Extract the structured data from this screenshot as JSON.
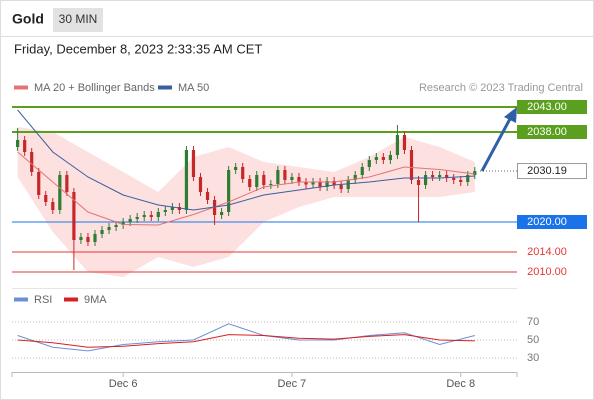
{
  "header": {
    "title": "Gold",
    "interval": "30 MIN",
    "timestamp": "Friday, December 8, 2023 2:33:35 AM CET"
  },
  "chart_data": [
    {
      "type": "candlestick",
      "note": "Research © 2023 Trading Central",
      "up_color": "#2e7d32",
      "down_color": "#c62828",
      "xlim": [
        -0.8,
        71
      ],
      "ylim": [
        2007.4,
        2050.4
      ],
      "open": [
        2035.0,
        2036.4,
        2034.0,
        2030.0,
        2025.4,
        2024.0,
        2022.4,
        2029.4,
        2026.0,
        2016.4,
        2017.0,
        2016.0,
        2017.6,
        2018.4,
        2019.0,
        2019.4,
        2020.0,
        2020.6,
        2021.0,
        2021.4,
        2021.0,
        2022.0,
        2022.4,
        2023.0,
        2022.4,
        2034.4,
        2029.0,
        2026.0,
        2024.4,
        2021.4,
        2022.0,
        2030.4,
        2031.0,
        2028.6,
        2027.0,
        2029.4,
        2027.4,
        2027.6,
        2030.4,
        2028.4,
        2029.0,
        2028.0,
        2027.5,
        2028.0,
        2027.0,
        2028.2,
        2027.4,
        2026.6,
        2028.4,
        2029.4,
        2031.0,
        2032.4,
        2033.0,
        2032.4,
        2033.4,
        2037.4,
        2034.4,
        2028.4,
        2027.4,
        2029.4,
        2029.0,
        2029.4,
        2028.8,
        2028.4,
        2028.0,
        2029.4
      ],
      "high": [
        2038.8,
        2037.2,
        2034.8,
        2030.8,
        2026.2,
        2024.8,
        2030.2,
        2030.2,
        2026.8,
        2017.8,
        2017.8,
        2018.4,
        2019.2,
        2019.8,
        2020.2,
        2020.8,
        2021.4,
        2021.8,
        2022.2,
        2022.2,
        2022.8,
        2023.2,
        2023.8,
        2023.8,
        2035.2,
        2035.2,
        2029.8,
        2026.8,
        2025.2,
        2022.8,
        2031.2,
        2031.8,
        2031.8,
        2029.4,
        2030.2,
        2030.2,
        2028.4,
        2031.2,
        2031.2,
        2029.8,
        2029.8,
        2028.8,
        2028.8,
        2028.8,
        2029.0,
        2029.0,
        2028.2,
        2029.2,
        2030.2,
        2031.8,
        2033.2,
        2033.8,
        2033.8,
        2034.2,
        2039.4,
        2038.2,
        2035.2,
        2029.2,
        2030.2,
        2030.2,
        2030.2,
        2030.2,
        2029.6,
        2029.2,
        2030.2,
        2031.0
      ],
      "low": [
        2034.2,
        2033.2,
        2029.2,
        2024.6,
        2023.2,
        2021.6,
        2021.6,
        2025.2,
        2010.4,
        2015.6,
        2015.2,
        2015.2,
        2016.8,
        2017.6,
        2018.2,
        2018.6,
        2019.2,
        2019.8,
        2020.2,
        2020.2,
        2020.2,
        2021.2,
        2021.6,
        2021.6,
        2021.6,
        2028.2,
        2025.2,
        2023.6,
        2019.4,
        2020.6,
        2021.2,
        2029.6,
        2027.8,
        2026.2,
        2026.2,
        2026.6,
        2026.6,
        2026.8,
        2027.6,
        2027.6,
        2027.2,
        2026.7,
        2026.7,
        2026.2,
        2026.2,
        2026.6,
        2025.8,
        2025.8,
        2027.6,
        2028.6,
        2030.2,
        2031.6,
        2031.6,
        2031.6,
        2032.6,
        2033.6,
        2027.6,
        2020.0,
        2026.6,
        2028.2,
        2028.2,
        2028.0,
        2027.6,
        2027.2,
        2027.2,
        2028.6
      ],
      "close": [
        2036.4,
        2034.0,
        2030.0,
        2025.4,
        2024.0,
        2022.4,
        2029.4,
        2026.0,
        2016.4,
        2017.0,
        2016.0,
        2017.6,
        2018.4,
        2019.0,
        2019.4,
        2020.0,
        2020.6,
        2021.0,
        2021.4,
        2021.0,
        2022.0,
        2022.4,
        2023.0,
        2022.4,
        2034.4,
        2029.0,
        2026.0,
        2024.4,
        2021.4,
        2022.0,
        2030.4,
        2031.0,
        2028.6,
        2027.0,
        2029.4,
        2027.4,
        2027.6,
        2030.4,
        2028.4,
        2029.0,
        2028.0,
        2027.5,
        2028.0,
        2027.0,
        2028.2,
        2027.4,
        2026.6,
        2028.4,
        2029.4,
        2031.0,
        2032.4,
        2033.0,
        2032.4,
        2033.4,
        2037.4,
        2034.4,
        2028.4,
        2027.4,
        2029.4,
        2029.0,
        2029.4,
        2028.8,
        2028.4,
        2028.0,
        2029.4,
        2030.19
      ],
      "series_x": [
        0,
        5,
        10,
        15,
        20,
        25,
        30,
        35,
        40,
        45,
        50,
        55,
        60,
        65
      ],
      "series": [
        {
          "name": "MA 20 + Bollinger Bands",
          "color": "#e57373",
          "band_color": "#fde0e0",
          "values": [
            2034,
            2028,
            2022,
            2019.5,
            2019.4,
            2021.5,
            2024,
            2027,
            2028,
            2028,
            2029,
            2031,
            2030.5,
            2029.6
          ],
          "band_upper": [
            2039,
            2038,
            2034,
            2030,
            2026,
            2033,
            2035,
            2032,
            2031,
            2030,
            2033,
            2037,
            2035,
            2032
          ],
          "band_lower": [
            2029,
            2018,
            2010,
            2009,
            2013,
            2011,
            2013,
            2020,
            2023,
            2025,
            2025,
            2025,
            2025,
            2026
          ]
        },
        {
          "name": "MA 50",
          "color": "#3a5f9c",
          "values": [
            2042.4,
            2034.0,
            2029.0,
            2025.4,
            2023.4,
            2022.4,
            2023.4,
            2025.4,
            2026.4,
            2027.4,
            2028.0,
            2028.8,
            2028.8,
            2029.2
          ]
        }
      ],
      "levels": [
        {
          "value": 2043,
          "label": "2043.00",
          "color": "#5aa01e",
          "boxed": true
        },
        {
          "value": 2038,
          "label": "2038.00",
          "color": "#5aa01e",
          "boxed": true
        },
        {
          "value": 2030.19,
          "label": "2030.19",
          "color": "#555555",
          "boxed": false,
          "current": true
        },
        {
          "value": 2020,
          "label": "2020.00",
          "color": "#1a73e8",
          "boxed": true
        },
        {
          "value": 2014,
          "label": "2014.00",
          "color": "#e53935",
          "boxed": false
        },
        {
          "value": 2010,
          "label": "2010.00",
          "color": "#e53935",
          "boxed": false
        }
      ]
    },
    {
      "type": "line",
      "xlim": [
        -0.8,
        71
      ],
      "ylim": [
        16.7,
        83.3
      ],
      "yticks": [
        70,
        50,
        30
      ],
      "xticks": [
        {
          "value": 15,
          "label": "Dec 6"
        },
        {
          "value": 39,
          "label": "Dec 7"
        },
        {
          "value": 63,
          "label": "Dec 8"
        }
      ],
      "x": [
        0,
        5,
        10,
        15,
        20,
        25,
        30,
        35,
        40,
        45,
        50,
        55,
        60,
        65
      ],
      "series": [
        {
          "name": "RSI",
          "color": "#6b8fd6",
          "values": [
            55,
            42,
            38,
            45,
            48,
            50,
            68,
            55,
            50,
            50,
            55,
            58,
            45,
            55
          ]
        },
        {
          "name": "9MA",
          "color": "#d62020",
          "values": [
            50,
            47,
            42,
            43,
            46,
            48,
            56,
            55,
            52,
            51,
            54,
            56,
            50,
            49
          ]
        }
      ]
    }
  ]
}
